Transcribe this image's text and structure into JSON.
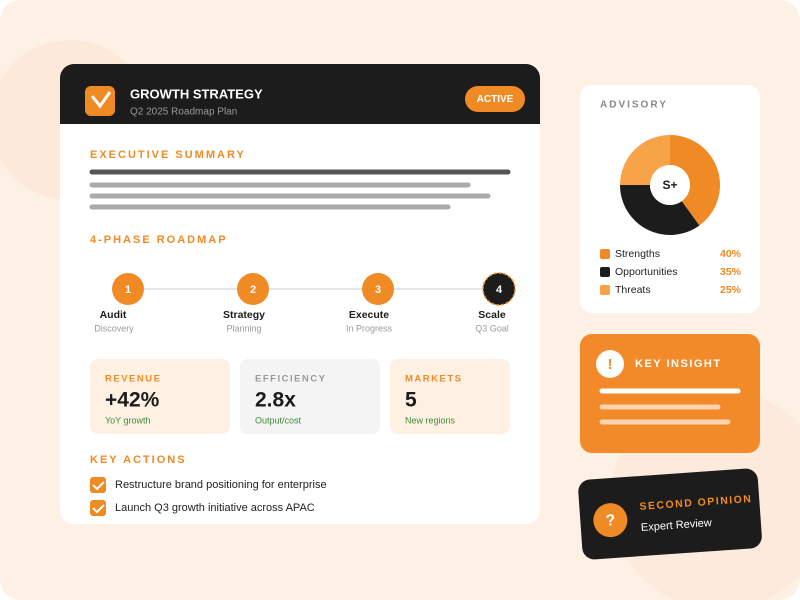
{
  "header": {
    "title": "GROWTH STRATEGY",
    "subtitle": "Q2 2025 Roadmap Plan",
    "status": "ACTIVE"
  },
  "summary": {
    "heading": "EXECUTIVE SUMMARY"
  },
  "roadmap": {
    "heading": "4-PHASE ROADMAP",
    "phases": [
      {
        "step": 1,
        "name": "Audit",
        "detail": "Discovery"
      },
      {
        "step": 2,
        "name": "Strategy",
        "detail": "Planning"
      },
      {
        "step": 3,
        "name": "Execute",
        "detail": "In Progress"
      },
      {
        "step": 4,
        "name": "Scale",
        "detail": "Q3 Goal"
      }
    ]
  },
  "metrics": [
    {
      "label": "REVENUE",
      "value": "+42%",
      "note": "YoY growth"
    },
    {
      "label": "EFFICIENCY",
      "value": "2.8x",
      "note": "Output/cost"
    },
    {
      "label": "MARKETS",
      "value": "5",
      "note": "New regions"
    }
  ],
  "actions": {
    "heading": "KEY ACTIONS",
    "items": [
      "Restructure brand positioning for enterprise",
      "Launch Q3 growth initiative across APAC"
    ]
  },
  "advisory": {
    "heading": "ADVISORY",
    "badge": "S+",
    "segments": [
      {
        "name": "Strengths",
        "value": 40,
        "label": "40%",
        "color": "#f08a24"
      },
      {
        "name": "Opportunities",
        "value": 35,
        "label": "35%",
        "color": "#1c1c1c"
      },
      {
        "name": "Threats",
        "value": 25,
        "label": "25%",
        "color": "#f7a348"
      }
    ]
  },
  "insight": {
    "icon": "!",
    "heading": "KEY INSIGHT"
  },
  "second_opinion": {
    "icon": "?",
    "heading": "SECOND OPINION",
    "text": "Expert Review"
  }
}
